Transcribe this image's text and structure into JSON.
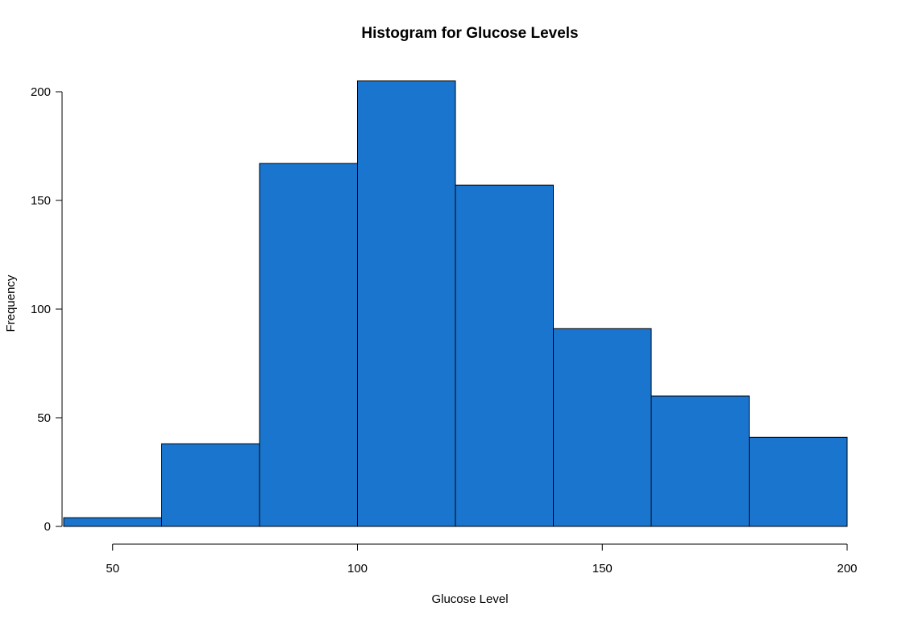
{
  "chart_data": {
    "type": "bar",
    "title": "Histogram for Glucose Levels",
    "xlabel": "Glucose Level",
    "ylabel": "Frequency",
    "bins": [
      {
        "start": 40,
        "end": 60,
        "count": 4
      },
      {
        "start": 60,
        "end": 80,
        "count": 38
      },
      {
        "start": 80,
        "end": 100,
        "count": 167
      },
      {
        "start": 100,
        "end": 120,
        "count": 205
      },
      {
        "start": 120,
        "end": 140,
        "count": 157
      },
      {
        "start": 140,
        "end": 160,
        "count": 91
      },
      {
        "start": 160,
        "end": 180,
        "count": 60
      },
      {
        "start": 180,
        "end": 200,
        "count": 41
      }
    ],
    "x_ticks": [
      50,
      100,
      150,
      200
    ],
    "y_ticks": [
      0,
      50,
      100,
      150,
      200
    ],
    "xlim": [
      40,
      200
    ],
    "ylim": [
      0,
      205
    ],
    "bar_color": "#1a75cf",
    "bar_border_color": "#000000",
    "grid": false
  }
}
